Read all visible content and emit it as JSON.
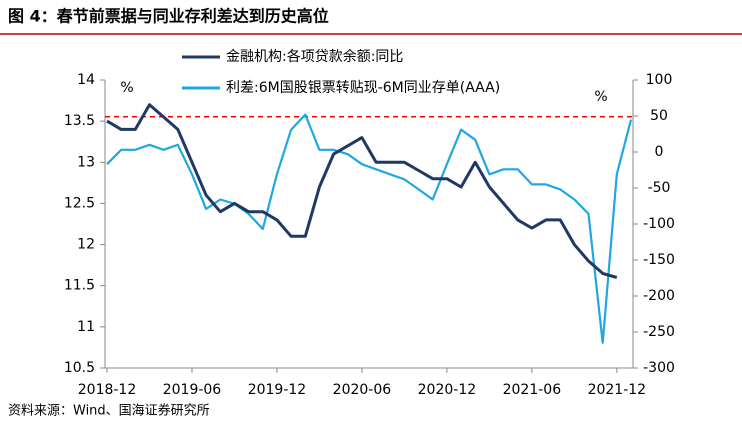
{
  "chart_data": {
    "type": "line",
    "title": "图 4：春节前票据与同业存利差达到历史高位",
    "source": "资料来源：Wind、国海证券研究所",
    "y_unit": "%",
    "y2_unit": "%",
    "x": [
      "2018-12",
      "2019-01",
      "2019-02",
      "2019-03",
      "2019-04",
      "2019-05",
      "2019-06",
      "2019-07",
      "2019-08",
      "2019-09",
      "2019-10",
      "2019-11",
      "2019-12",
      "2020-01",
      "2020-02",
      "2020-03",
      "2020-04",
      "2020-05",
      "2020-06",
      "2020-07",
      "2020-08",
      "2020-09",
      "2020-10",
      "2020-11",
      "2020-12",
      "2021-01",
      "2021-02",
      "2021-03",
      "2021-04",
      "2021-05",
      "2021-06",
      "2021-07",
      "2021-08",
      "2021-09",
      "2021-10",
      "2021-11",
      "2021-12",
      "2022-01"
    ],
    "xlim": [
      "2018-12",
      "2022-01"
    ],
    "xticks": [
      "2018-12",
      "2019-06",
      "2019-12",
      "2020-06",
      "2020-12",
      "2021-06",
      "2021-12"
    ],
    "ylim": [
      10.5,
      14
    ],
    "yticks": [
      10.5,
      11,
      11.5,
      12,
      12.5,
      13,
      13.5,
      14
    ],
    "y2lim": [
      -300,
      100
    ],
    "y2ticks": [
      -300,
      -250,
      -200,
      -150,
      -100,
      -50,
      0,
      50,
      100
    ],
    "reference_line": {
      "value": 49,
      "axis": "y2",
      "color": "#ff0000"
    },
    "series": [
      {
        "name": "金融机构:各项贷款余额:同比",
        "color": "#1f3864",
        "values": [
          13.5,
          13.4,
          13.4,
          13.7,
          13.55,
          13.4,
          13.0,
          12.6,
          12.4,
          12.5,
          12.4,
          12.4,
          12.3,
          12.1,
          12.1,
          12.7,
          13.1,
          13.2,
          13.3,
          13.0,
          13.0,
          13.0,
          12.9,
          12.8,
          12.8,
          12.7,
          13.0,
          12.7,
          12.5,
          12.3,
          12.2,
          12.3,
          12.3,
          12.0,
          11.8,
          11.65,
          11.6,
          null
        ]
      },
      {
        "name": "利差:6M国股银票转贴现-6M同业存单(AAA)",
        "color": "#1ea7e1",
        "axis": "y2",
        "values": [
          -17,
          3,
          3,
          10,
          3,
          10,
          -31,
          -79,
          -66,
          -72,
          -86,
          -107,
          -31,
          31,
          52,
          3,
          3,
          -3,
          -17,
          -24,
          -31,
          -38,
          -52,
          -66,
          -17,
          31,
          17,
          -31,
          -24,
          -24,
          -45,
          -45,
          -52,
          -66,
          -86,
          -265,
          -31,
          45
        ]
      }
    ]
  }
}
